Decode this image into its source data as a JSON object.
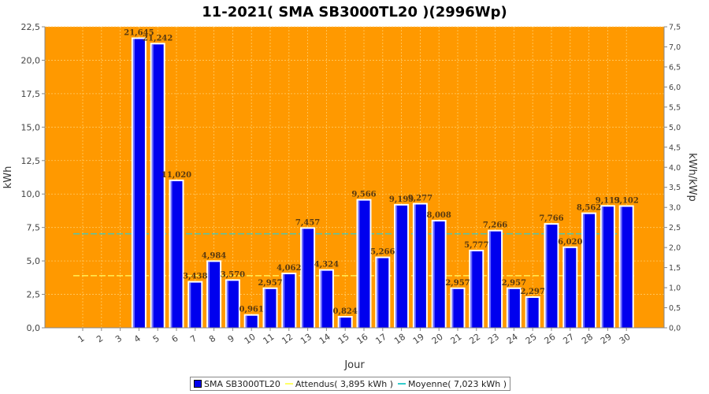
{
  "chart_data": {
    "type": "bar",
    "title": "11-2021( SMA SB3000TL20 )(2996Wp)",
    "xlabel": "Jour",
    "ylabel": "kWh",
    "y2label": "kWh/kWp",
    "ylim": [
      0,
      22.5
    ],
    "y_ticks": [
      "0,0",
      "2,5",
      "5,0",
      "7,5",
      "10,0",
      "12,5",
      "15,0",
      "17,5",
      "20,0",
      "22,5"
    ],
    "y2lim": [
      0,
      7.5
    ],
    "y2_ticks": [
      "0,0",
      "0,5",
      "1,0",
      "1,5",
      "2,0",
      "2,5",
      "3,0",
      "3,5",
      "4,0",
      "4,5",
      "5,0",
      "5,5",
      "6,0",
      "6,5",
      "7,0",
      "7,5"
    ],
    "categories": [
      "1",
      "2",
      "3",
      "4",
      "5",
      "6",
      "7",
      "8",
      "9",
      "10",
      "11",
      "12",
      "13",
      "14",
      "15",
      "16",
      "17",
      "18",
      "19",
      "20",
      "21",
      "22",
      "23",
      "24",
      "25",
      "26",
      "27",
      "28",
      "29",
      "30"
    ],
    "series": [
      {
        "name": "SMA SB3000TL20",
        "values": [
          0,
          0,
          0,
          21.645,
          21.242,
          11.02,
          3.438,
          4.984,
          3.57,
          0.961,
          2.957,
          4.062,
          7.457,
          4.324,
          0.824,
          9.566,
          5.266,
          9.199,
          9.277,
          8.008,
          2.957,
          5.777,
          7.266,
          2.957,
          2.297,
          7.766,
          6.02,
          8.562,
          9.113,
          9.102
        ],
        "labels": [
          "",
          "",
          "",
          "21,645",
          "21,242",
          "11,020",
          "3,438",
          "4,984",
          "3,570",
          "0,961",
          "2,957",
          "4,062",
          "7,457",
          "4,324",
          "0,824",
          "9,566",
          "5,266",
          "9,199",
          "9,277",
          "8,008",
          "2,957",
          "5,777",
          "7,266",
          "2,957",
          "2,297",
          "7,766",
          "6,020",
          "8,562",
          "9,113",
          "9,102"
        ]
      }
    ],
    "reference_lines": [
      {
        "name": "Attendus",
        "value": 3.895,
        "color": "#ffff66"
      },
      {
        "name": "Moyenne",
        "value": 7.023,
        "color": "#33cccc"
      }
    ],
    "grid": true,
    "legend_position": "bottom",
    "colors": {
      "bar": "#0000ee",
      "plot_bg": "#ff9900",
      "grid": "#ffcc66"
    }
  },
  "legend": {
    "series_label": "SMA SB3000TL20",
    "attendus_label": "Attendus( 3,895 kWh )",
    "moyenne_label": "Moyenne( 7,023 kWh )"
  }
}
